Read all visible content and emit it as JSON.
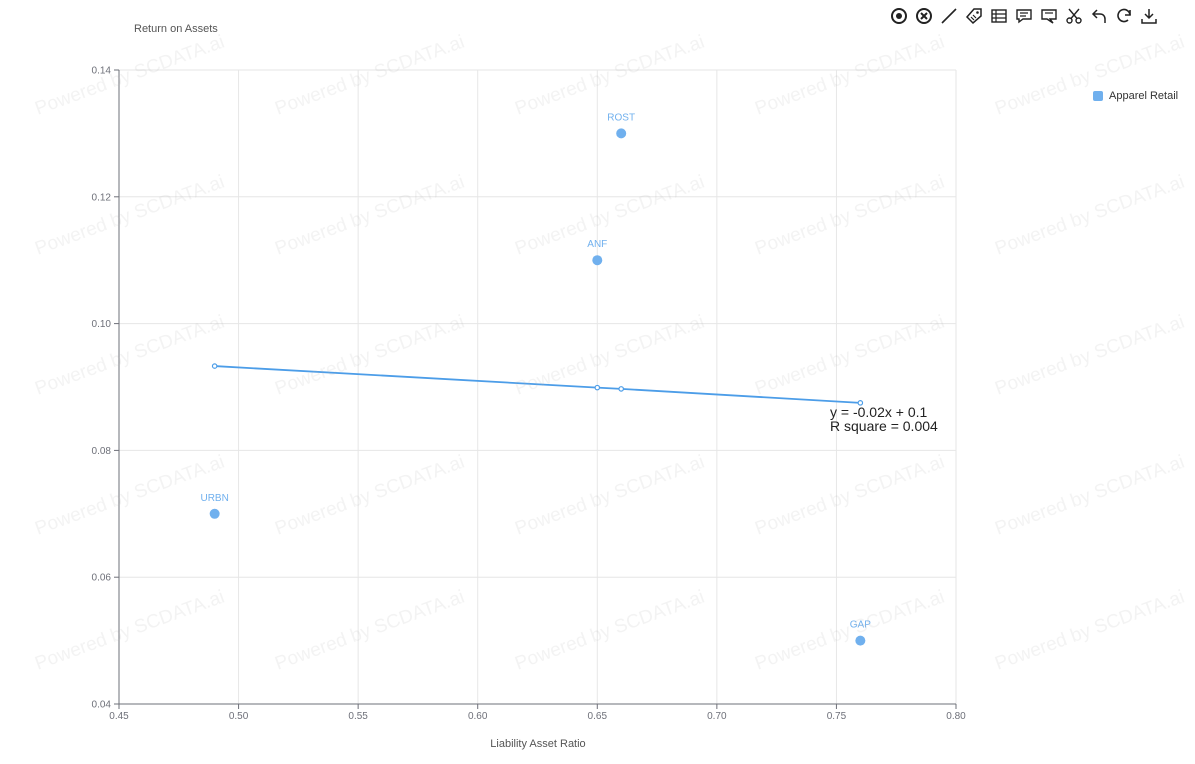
{
  "chart_data": {
    "type": "scatter",
    "ylabel": "Return on Assets",
    "xlabel": "Liability Asset Ratio",
    "xlim": [
      0.45,
      0.8
    ],
    "ylim": [
      0.04,
      0.14
    ],
    "x_ticks": [
      "0.45",
      "0.50",
      "0.55",
      "0.60",
      "0.65",
      "0.70",
      "0.75",
      "0.80"
    ],
    "y_ticks": [
      "0.04",
      "0.06",
      "0.08",
      "0.10",
      "0.12",
      "0.14"
    ],
    "grid": true,
    "legend_position": "top-right",
    "series": [
      {
        "name": "Apparel Retail",
        "color": "#70b0ee",
        "points": [
          {
            "label": "ROST",
            "x": 0.66,
            "y": 0.13
          },
          {
            "label": "ANF",
            "x": 0.65,
            "y": 0.11
          },
          {
            "label": "URBN",
            "x": 0.49,
            "y": 0.07
          },
          {
            "label": "GAP",
            "x": 0.76,
            "y": 0.05
          }
        ]
      }
    ],
    "trendline": {
      "color": "#4c9de8",
      "points": [
        {
          "x": 0.49,
          "y": 0.0933
        },
        {
          "x": 0.65,
          "y": 0.0899
        },
        {
          "x": 0.66,
          "y": 0.0897
        },
        {
          "x": 0.76,
          "y": 0.0875
        }
      ],
      "equation": "y = -0.02x + 0.1",
      "r_squared": "R square = 0.004"
    }
  },
  "watermark": "Powered by SCDATA.ai",
  "toolbox": [
    {
      "icon": "target-icon"
    },
    {
      "icon": "clear-icon"
    },
    {
      "icon": "line-draw-icon"
    },
    {
      "icon": "tag-icon"
    },
    {
      "icon": "table-icon"
    },
    {
      "icon": "comment-icon"
    },
    {
      "icon": "annotation-icon"
    },
    {
      "icon": "scissors-icon"
    },
    {
      "icon": "undo-icon"
    },
    {
      "icon": "refresh-icon"
    },
    {
      "icon": "download-icon"
    }
  ]
}
